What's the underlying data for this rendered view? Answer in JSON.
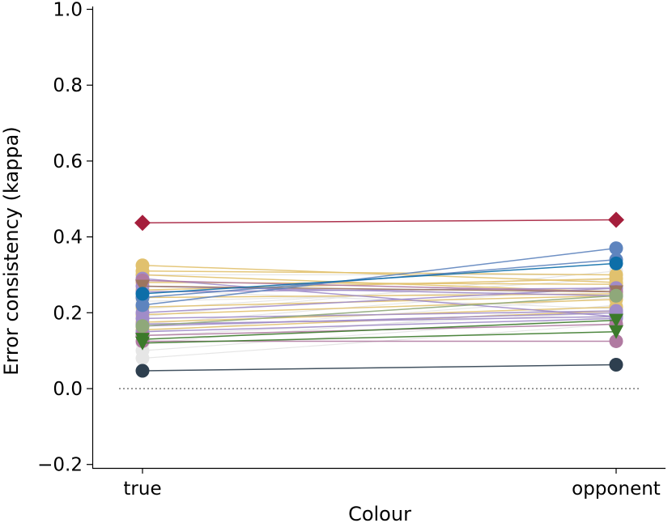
{
  "chart_data": {
    "type": "line",
    "title": "",
    "xlabel": "Colour",
    "ylabel": "Error consistency (kappa)",
    "categories": [
      "true",
      "opponent"
    ],
    "ylim": [
      -0.21,
      1.0
    ],
    "yticks": [
      {
        "value": -0.2,
        "label": "−0.2"
      },
      {
        "value": 0.0,
        "label": "0.0"
      },
      {
        "value": 0.2,
        "label": "0.2"
      },
      {
        "value": 0.4,
        "label": "0.4"
      },
      {
        "value": 0.6,
        "label": "0.6"
      },
      {
        "value": 0.8,
        "label": "0.8"
      },
      {
        "value": 1.0,
        "label": "1.0"
      }
    ],
    "reference_line": {
      "y": 0.0,
      "style": "dotted",
      "color": "#999999"
    },
    "grid": false,
    "legend": "none",
    "series": [
      {
        "values": [
          0.21,
          0.29
        ],
        "color": "#e6e6e6",
        "marker": "circle"
      },
      {
        "values": [
          0.19,
          0.31
        ],
        "color": "#e6e6e6",
        "marker": "circle"
      },
      {
        "values": [
          0.17,
          0.27
        ],
        "color": "#e6e6e6",
        "marker": "circle"
      },
      {
        "values": [
          0.15,
          0.24
        ],
        "color": "#e6e6e6",
        "marker": "circle"
      },
      {
        "values": [
          0.14,
          0.2
        ],
        "color": "#e6e6e6",
        "marker": "circle"
      },
      {
        "values": [
          0.12,
          0.22
        ],
        "color": "#e6e6e6",
        "marker": "circle"
      },
      {
        "values": [
          0.1,
          0.19
        ],
        "color": "#e6e6e6",
        "marker": "circle"
      },
      {
        "values": [
          0.08,
          0.17
        ],
        "color": "#e6e6e6",
        "marker": "circle"
      },
      {
        "values": [
          0.23,
          0.26
        ],
        "color": "#e6e6e6",
        "marker": "circle"
      },
      {
        "values": [
          0.26,
          0.21
        ],
        "color": "#e6e6e6",
        "marker": "circle"
      },
      {
        "values": [
          0.3,
          0.3
        ],
        "color": "#e6e6e6",
        "marker": "circle"
      },
      {
        "values": [
          0.325,
          0.28
        ],
        "color": "#e1c16e",
        "marker": "circle"
      },
      {
        "values": [
          0.31,
          0.3
        ],
        "color": "#e1c16e",
        "marker": "circle"
      },
      {
        "values": [
          0.3,
          0.255
        ],
        "color": "#e1c16e",
        "marker": "circle"
      },
      {
        "values": [
          0.28,
          0.275
        ],
        "color": "#e1c16e",
        "marker": "circle"
      },
      {
        "values": [
          0.26,
          0.29
        ],
        "color": "#e1c16e",
        "marker": "circle"
      },
      {
        "values": [
          0.24,
          0.25
        ],
        "color": "#e1c16e",
        "marker": "circle"
      },
      {
        "values": [
          0.215,
          0.245
        ],
        "color": "#e1c16e",
        "marker": "circle"
      },
      {
        "values": [
          0.195,
          0.235
        ],
        "color": "#e1c16e",
        "marker": "circle"
      },
      {
        "values": [
          0.175,
          0.215
        ],
        "color": "#e1c16e",
        "marker": "circle"
      },
      {
        "values": [
          0.155,
          0.205
        ],
        "color": "#e1c16e",
        "marker": "circle"
      },
      {
        "values": [
          0.29,
          0.19
        ],
        "color": "#a08cc8",
        "marker": "circle"
      },
      {
        "values": [
          0.27,
          0.245
        ],
        "color": "#a08cc8",
        "marker": "circle"
      },
      {
        "values": [
          0.255,
          0.265
        ],
        "color": "#a08cc8",
        "marker": "circle"
      },
      {
        "values": [
          0.2,
          0.265
        ],
        "color": "#a08cc8",
        "marker": "circle"
      },
      {
        "values": [
          0.185,
          0.205
        ],
        "color": "#a08cc8",
        "marker": "circle"
      },
      {
        "values": [
          0.17,
          0.19
        ],
        "color": "#a08cc8",
        "marker": "circle"
      },
      {
        "values": [
          0.165,
          0.2
        ],
        "color": "#a08cc8",
        "marker": "circle"
      },
      {
        "values": [
          0.15,
          0.185
        ],
        "color": "#a08cc8",
        "marker": "circle"
      },
      {
        "values": [
          0.285,
          0.255
        ],
        "color": "#b07aa1",
        "marker": "circle"
      },
      {
        "values": [
          0.14,
          0.17
        ],
        "color": "#b07aa1",
        "marker": "circle"
      },
      {
        "values": [
          0.125,
          0.125
        ],
        "color": "#b07aa1",
        "marker": "circle"
      },
      {
        "values": [
          0.27,
          0.255
        ],
        "color": "#9c755f",
        "marker": "triangle-down"
      },
      {
        "values": [
          0.22,
          0.37
        ],
        "color": "#5e84be",
        "marker": "circle"
      },
      {
        "values": [
          0.24,
          0.34
        ],
        "color": "#5e84be",
        "marker": "circle"
      },
      {
        "values": [
          0.25,
          0.33
        ],
        "color": "#0d6ea8",
        "marker": "circle"
      },
      {
        "values": [
          0.165,
          0.245
        ],
        "color": "#8fa87a",
        "marker": "circle"
      },
      {
        "values": [
          0.13,
          0.18
        ],
        "color": "#3b7a2a",
        "marker": "triangle-down"
      },
      {
        "values": [
          0.12,
          0.15
        ],
        "color": "#3b7a2a",
        "marker": "triangle-down"
      },
      {
        "values": [
          0.047,
          0.063
        ],
        "color": "#2e3f4f",
        "marker": "circle"
      },
      {
        "values": [
          0.437,
          0.445
        ],
        "color": "#a51e3c",
        "marker": "diamond"
      }
    ]
  }
}
